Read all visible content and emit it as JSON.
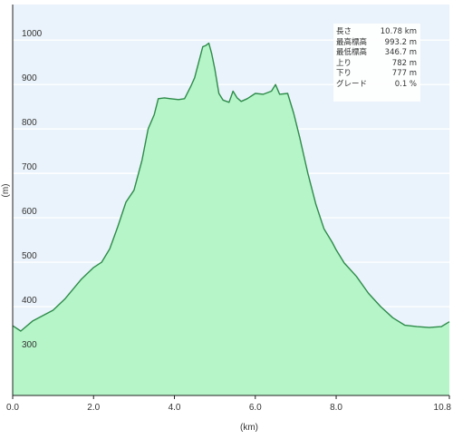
{
  "chart_data": {
    "type": "area",
    "title": "",
    "xlabel": "(km)",
    "ylabel": "(m)",
    "xlim": [
      0,
      10.8
    ],
    "ylim": [
      200,
      1080
    ],
    "grid": true,
    "area_color": "#b5f5c8",
    "line_color": "#2e8b4a",
    "background_color": "#eaf3fb",
    "x_ticks": [
      {
        "value": 0,
        "label": "0.0"
      },
      {
        "value": 2,
        "label": "2.0"
      },
      {
        "value": 4,
        "label": "4.0"
      },
      {
        "value": 6,
        "label": "6.0"
      },
      {
        "value": 8,
        "label": "8.0"
      },
      {
        "value": 10.8,
        "label": "10.8"
      }
    ],
    "y_ticks": [
      {
        "value": 300,
        "label": "300"
      },
      {
        "value": 400,
        "label": "400"
      },
      {
        "value": 500,
        "label": "500"
      },
      {
        "value": 600,
        "label": "600"
      },
      {
        "value": 700,
        "label": "700"
      },
      {
        "value": 800,
        "label": "800"
      },
      {
        "value": 900,
        "label": "900"
      },
      {
        "value": 1000,
        "label": "1000"
      }
    ],
    "series": [
      {
        "x": [
          0,
          0.2,
          0.5,
          1.0,
          1.3,
          1.7,
          2.0,
          2.2,
          2.4,
          2.6,
          2.8,
          3.0,
          3.2,
          3.35,
          3.5,
          3.6,
          3.75,
          3.9,
          4.1,
          4.25,
          4.4,
          4.5,
          4.6,
          4.7,
          4.78,
          4.85,
          4.92,
          5.0,
          5.1,
          5.2,
          5.35,
          5.45,
          5.55,
          5.65,
          5.8,
          6.0,
          6.2,
          6.4,
          6.5,
          6.6,
          6.8,
          6.95,
          7.1,
          7.3,
          7.5,
          7.7,
          7.9,
          8.0,
          8.2,
          8.5,
          8.8,
          9.1,
          9.4,
          9.7,
          10.0,
          10.3,
          10.6,
          10.8
        ],
        "y": [
          357,
          345,
          368,
          392,
          418,
          462,
          488,
          500,
          530,
          580,
          635,
          662,
          730,
          800,
          832,
          868,
          870,
          868,
          866,
          868,
          895,
          915,
          950,
          985,
          988,
          993,
          970,
          935,
          880,
          865,
          860,
          885,
          870,
          862,
          868,
          880,
          878,
          885,
          900,
          878,
          880,
          835,
          780,
          700,
          630,
          575,
          545,
          528,
          498,
          468,
          430,
          400,
          375,
          358,
          355,
          353,
          355,
          366
        ]
      }
    ]
  },
  "stats": [
    {
      "label": "長さ",
      "value": "10.78 km"
    },
    {
      "label": "最高標高",
      "value": "993.2 m"
    },
    {
      "label": "最低標高",
      "value": "346.7 m"
    },
    {
      "label": "上り",
      "value": "782 m"
    },
    {
      "label": "下り",
      "value": "777 m"
    },
    {
      "label": "グレード",
      "value": "0.1 %"
    }
  ]
}
